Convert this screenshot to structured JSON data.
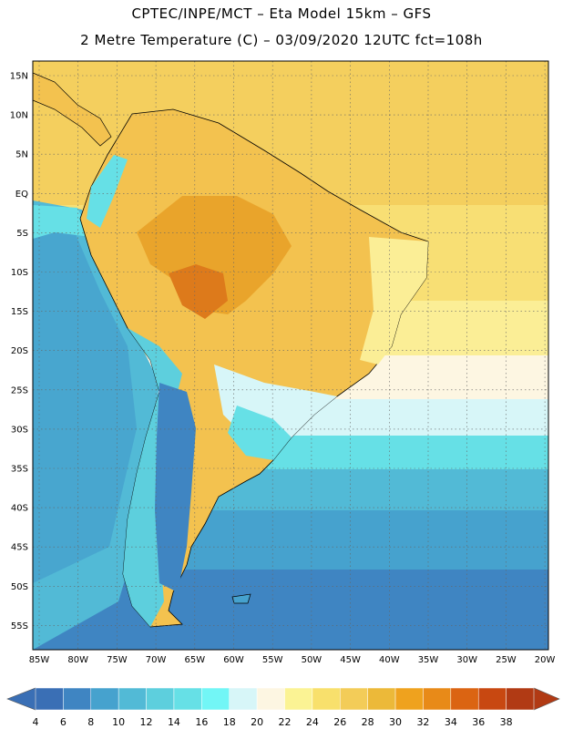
{
  "header": {
    "line1": "CPTEC/INPE/MCT –  Eta Model 15km – GFS",
    "line2": "2 Metre Temperature (C) – 03/09/2020 12UTC fct=108h"
  },
  "map": {
    "lat_labels": [
      "15N",
      "10N",
      "5N",
      "EQ",
      "5S",
      "10S",
      "15S",
      "20S",
      "25S",
      "30S",
      "35S",
      "40S",
      "45S",
      "50S",
      "55S"
    ],
    "lon_labels": [
      "85W",
      "80W",
      "75W",
      "70W",
      "65W",
      "60W",
      "55W",
      "50W",
      "45W",
      "40W",
      "35W",
      "30W",
      "25W",
      "20W"
    ]
  },
  "colorbar": {
    "labels": [
      "4",
      "6",
      "8",
      "10",
      "12",
      "14",
      "16",
      "18",
      "20",
      "22",
      "24",
      "26",
      "28",
      "30",
      "32",
      "34",
      "36",
      "38"
    ],
    "colors": [
      "#3a6fb5",
      "#3f85c2",
      "#46a2ce",
      "#52bad6",
      "#5dcfdd",
      "#66e0e6",
      "#72f6f6",
      "#d7f6f8",
      "#fdf6e2",
      "#fbf394",
      "#f8e06c",
      "#f3cc58",
      "#ecb939",
      "#efa21e",
      "#e88a18",
      "#db6412",
      "#c84811",
      "#b13a14"
    ],
    "left_arrow": "#3a6fb5",
    "right_arrow": "#b13a14"
  }
}
